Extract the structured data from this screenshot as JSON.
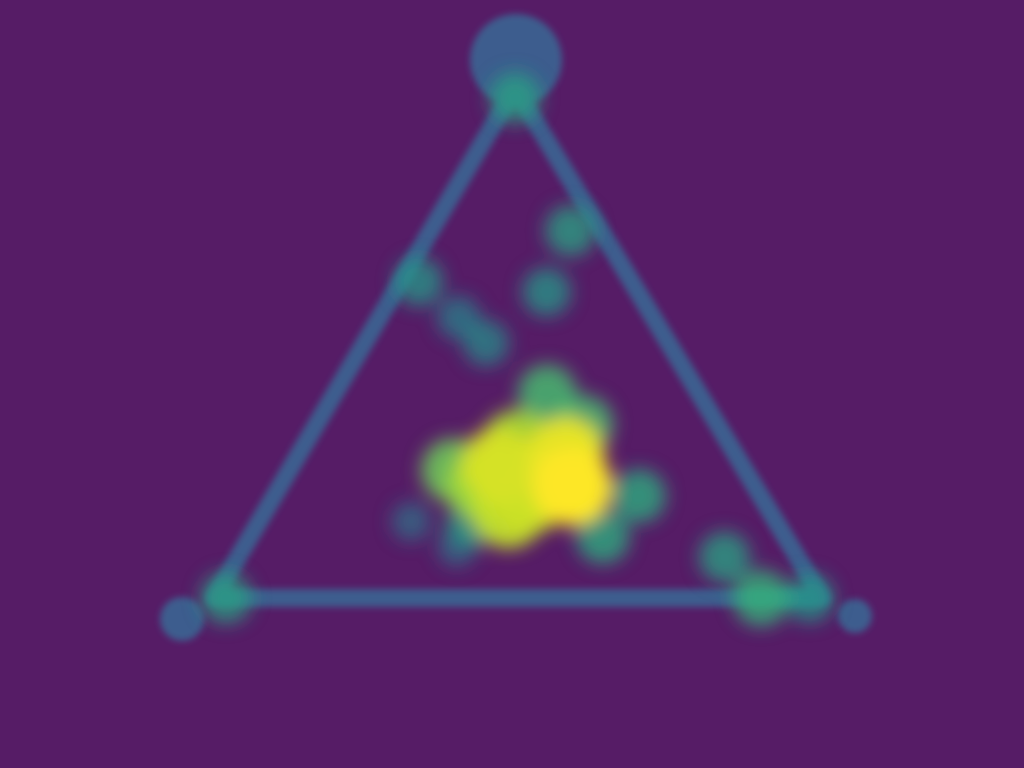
{
  "chart_data": {
    "type": "heatmap",
    "subtype": "ternary-density",
    "title": "",
    "xlabel": "",
    "ylabel": "",
    "colormap": "viridis",
    "background_color": "#561c66",
    "frame_color": "#3e5d8e",
    "blur": "heavy",
    "corners": [
      "top",
      "bottom-left",
      "bottom-right"
    ],
    "points": [
      {
        "a": 0.22,
        "b": 0.3,
        "c": 0.48,
        "density": 1.0
      },
      {
        "a": 0.28,
        "b": 0.28,
        "c": 0.44,
        "density": 0.95
      },
      {
        "a": 0.26,
        "b": 0.4,
        "c": 0.34,
        "density": 0.92
      },
      {
        "a": 0.2,
        "b": 0.38,
        "c": 0.42,
        "density": 0.9
      },
      {
        "a": 0.17,
        "b": 0.43,
        "c": 0.4,
        "density": 0.88
      },
      {
        "a": 0.3,
        "b": 0.35,
        "c": 0.35,
        "density": 0.82
      },
      {
        "a": 0.22,
        "b": 0.45,
        "c": 0.33,
        "density": 0.8
      },
      {
        "a": 0.25,
        "b": 0.48,
        "c": 0.27,
        "density": 0.7
      },
      {
        "a": 0.4,
        "b": 0.25,
        "c": 0.35,
        "density": 0.6
      },
      {
        "a": 0.34,
        "b": 0.22,
        "c": 0.44,
        "density": 0.6
      },
      {
        "a": 0.2,
        "b": 0.2,
        "c": 0.6,
        "density": 0.5
      },
      {
        "a": 0.12,
        "b": 0.3,
        "c": 0.58,
        "density": 0.5
      },
      {
        "a": 0.15,
        "b": 0.5,
        "c": 0.35,
        "density": 0.45
      },
      {
        "a": 0.6,
        "b": 0.15,
        "c": 0.25,
        "density": 0.4
      },
      {
        "a": 0.5,
        "b": 0.3,
        "c": 0.2,
        "density": 0.35
      },
      {
        "a": 0.55,
        "b": 0.32,
        "c": 0.13,
        "density": 0.3
      },
      {
        "a": 0.72,
        "b": 0.05,
        "c": 0.23,
        "density": 0.45
      },
      {
        "a": 0.62,
        "b": 0.35,
        "c": 0.03,
        "density": 0.4
      },
      {
        "a": 0.08,
        "b": 0.12,
        "c": 0.8,
        "density": 0.45
      },
      {
        "a": 0.0,
        "b": 0.1,
        "c": 0.9,
        "density": 0.55
      },
      {
        "a": 0.98,
        "b": 0.01,
        "c": 0.01,
        "density": 0.45
      },
      {
        "a": 0.0,
        "b": 0.98,
        "c": 0.02,
        "density": 0.45
      },
      {
        "a": 0.0,
        "b": 0.02,
        "c": 0.98,
        "density": 0.4
      },
      {
        "a": 0.19,
        "b": 0.46,
        "c": 0.35,
        "density": 0.25
      },
      {
        "a": 0.15,
        "b": 0.6,
        "c": 0.25,
        "density": 0.22
      },
      {
        "a": 0.1,
        "b": 0.55,
        "c": 0.35,
        "density": 0.22
      }
    ]
  }
}
